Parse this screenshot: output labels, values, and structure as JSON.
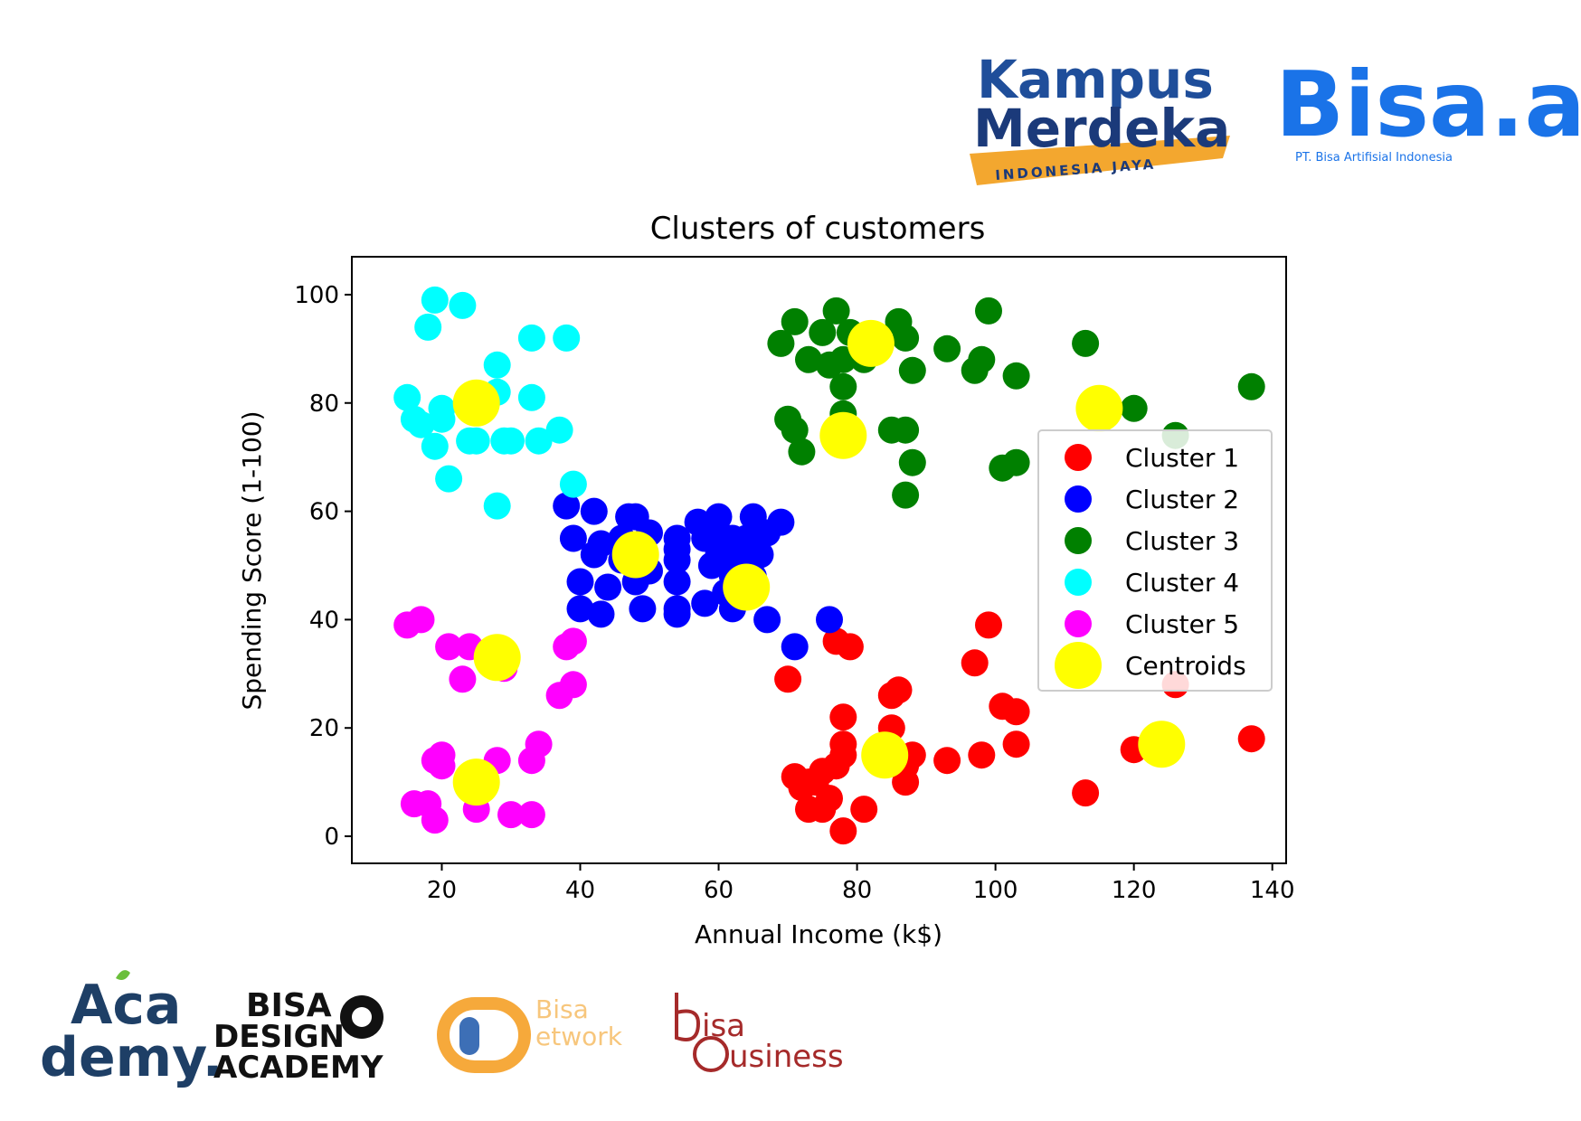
{
  "logos": {
    "kampus_merdeka": {
      "line1": "Kampus",
      "line2": "Merdeka",
      "ribbon": "INDONESIA JAYA",
      "colors": {
        "text": "#1f4e9a",
        "text_dark": "#1b3a7a",
        "ribbon": "#f3a72f"
      }
    },
    "bisa_ai": {
      "name": "Bisa.ai",
      "tagline": "PT. Bisa Artifisial Indonesia",
      "color": "#1a73e8"
    },
    "academy": {
      "line1": "Aca",
      "line2": "demy.",
      "color": "#1e3f66",
      "accent": "#6bbf3b"
    },
    "bisa_design_academy": {
      "line1": "BISA",
      "line2": "DESIGN",
      "line3": "ACADEMY",
      "color": "#111111"
    },
    "bisa_network": {
      "line1": "Bisa",
      "line2": "etwork",
      "colors": {
        "orange": "#f6a93b",
        "blue": "#3d6fb6",
        "text": "#f7c67c"
      }
    },
    "bisa_business": {
      "line1": "isa",
      "line2": "usiness",
      "color": "#a52a2a"
    }
  },
  "chart_data": {
    "type": "scatter",
    "title": "Clusters of customers",
    "xlabel": "Annual Income (k$)",
    "ylabel": "Spending Score (1-100)",
    "xlim": [
      7,
      142
    ],
    "ylim": [
      -5,
      107
    ],
    "xticks": [
      20,
      40,
      60,
      80,
      100,
      120,
      140
    ],
    "yticks": [
      0,
      20,
      40,
      60,
      80,
      100
    ],
    "grid": false,
    "legend_position": "center-right",
    "series": [
      {
        "name": "Cluster 1",
        "color": "#ff0000",
        "points": [
          [
            70,
            29
          ],
          [
            71,
            11
          ],
          [
            72,
            9
          ],
          [
            73,
            5
          ],
          [
            73,
            10
          ],
          [
            74,
            10
          ],
          [
            75,
            5
          ],
          [
            75,
            12
          ],
          [
            76,
            7
          ],
          [
            77,
            13
          ],
          [
            77,
            36
          ],
          [
            78,
            1
          ],
          [
            78,
            15
          ],
          [
            78,
            17
          ],
          [
            78,
            22
          ],
          [
            79,
            35
          ],
          [
            81,
            5
          ],
          [
            85,
            20
          ],
          [
            85,
            26
          ],
          [
            86,
            27
          ],
          [
            87,
            10
          ],
          [
            87,
            13
          ],
          [
            88,
            15
          ],
          [
            93,
            14
          ],
          [
            97,
            32
          ],
          [
            98,
            15
          ],
          [
            99,
            39
          ],
          [
            101,
            24
          ],
          [
            103,
            17
          ],
          [
            103,
            23
          ],
          [
            113,
            8
          ],
          [
            120,
            16
          ],
          [
            126,
            28
          ],
          [
            137,
            18
          ]
        ]
      },
      {
        "name": "Cluster 2",
        "color": "#0000ff",
        "points": [
          [
            38,
            61
          ],
          [
            39,
            55
          ],
          [
            40,
            47
          ],
          [
            40,
            42
          ],
          [
            42,
            60
          ],
          [
            42,
            52
          ],
          [
            43,
            54
          ],
          [
            43,
            41
          ],
          [
            44,
            46
          ],
          [
            46,
            51
          ],
          [
            46,
            55
          ],
          [
            47,
            59
          ],
          [
            48,
            52
          ],
          [
            48,
            47
          ],
          [
            48,
            59
          ],
          [
            49,
            42
          ],
          [
            50,
            49
          ],
          [
            50,
            56
          ],
          [
            54,
            47
          ],
          [
            54,
            53
          ],
          [
            54,
            42
          ],
          [
            54,
            51
          ],
          [
            54,
            55
          ],
          [
            54,
            41
          ],
          [
            57,
            58
          ],
          [
            58,
            55
          ],
          [
            59,
            50
          ],
          [
            60,
            56
          ],
          [
            60,
            52
          ],
          [
            60,
            59
          ],
          [
            61,
            45
          ],
          [
            62,
            42
          ],
          [
            62,
            55
          ],
          [
            63,
            51
          ],
          [
            64,
            55
          ],
          [
            65,
            59
          ],
          [
            67,
            40
          ],
          [
            67,
            56
          ],
          [
            69,
            58
          ],
          [
            71,
            35
          ],
          [
            76,
            40
          ],
          [
            58,
            43
          ],
          [
            62,
            48
          ],
          [
            65,
            48
          ],
          [
            66,
            52
          ]
        ]
      },
      {
        "name": "Cluster 3",
        "color": "#008000",
        "points": [
          [
            69,
            91
          ],
          [
            70,
            77
          ],
          [
            71,
            95
          ],
          [
            71,
            75
          ],
          [
            72,
            71
          ],
          [
            73,
            88
          ],
          [
            75,
            93
          ],
          [
            76,
            87
          ],
          [
            77,
            97
          ],
          [
            78,
            74
          ],
          [
            78,
            78
          ],
          [
            78,
            88
          ],
          [
            78,
            83
          ],
          [
            79,
            93
          ],
          [
            81,
            88
          ],
          [
            85,
            75
          ],
          [
            86,
            95
          ],
          [
            87,
            63
          ],
          [
            87,
            75
          ],
          [
            87,
            92
          ],
          [
            88,
            69
          ],
          [
            88,
            86
          ],
          [
            93,
            90
          ],
          [
            97,
            86
          ],
          [
            98,
            88
          ],
          [
            99,
            97
          ],
          [
            101,
            68
          ],
          [
            103,
            85
          ],
          [
            103,
            69
          ],
          [
            113,
            91
          ],
          [
            120,
            79
          ],
          [
            126,
            74
          ],
          [
            137,
            83
          ]
        ]
      },
      {
        "name": "Cluster 4",
        "color": "#00ffff",
        "points": [
          [
            15,
            81
          ],
          [
            16,
            77
          ],
          [
            17,
            76
          ],
          [
            18,
            94
          ],
          [
            19,
            72
          ],
          [
            19,
            99
          ],
          [
            20,
            77
          ],
          [
            20,
            79
          ],
          [
            21,
            66
          ],
          [
            23,
            98
          ],
          [
            24,
            73
          ],
          [
            25,
            73
          ],
          [
            28,
            61
          ],
          [
            28,
            82
          ],
          [
            28,
            87
          ],
          [
            29,
            73
          ],
          [
            30,
            73
          ],
          [
            33,
            92
          ],
          [
            33,
            81
          ],
          [
            34,
            73
          ],
          [
            37,
            75
          ],
          [
            38,
            92
          ],
          [
            39,
            65
          ]
        ]
      },
      {
        "name": "Cluster 5",
        "color": "#ff00ff",
        "points": [
          [
            15,
            39
          ],
          [
            16,
            6
          ],
          [
            17,
            40
          ],
          [
            18,
            6
          ],
          [
            19,
            3
          ],
          [
            19,
            14
          ],
          [
            20,
            15
          ],
          [
            20,
            13
          ],
          [
            21,
            35
          ],
          [
            23,
            29
          ],
          [
            24,
            35
          ],
          [
            25,
            5
          ],
          [
            28,
            32
          ],
          [
            28,
            14
          ],
          [
            29,
            31
          ],
          [
            30,
            4
          ],
          [
            33,
            4
          ],
          [
            33,
            14
          ],
          [
            34,
            17
          ],
          [
            37,
            26
          ],
          [
            38,
            35
          ],
          [
            39,
            36
          ],
          [
            39,
            28
          ]
        ]
      },
      {
        "name": "Centroids",
        "color": "#ffff00",
        "large": true,
        "points": [
          [
            25,
            80
          ],
          [
            28,
            33
          ],
          [
            25,
            10
          ],
          [
            48,
            52
          ],
          [
            64,
            46
          ],
          [
            82,
            91
          ],
          [
            78,
            74
          ],
          [
            84,
            15
          ],
          [
            115,
            79
          ],
          [
            124,
            17
          ]
        ]
      }
    ]
  }
}
